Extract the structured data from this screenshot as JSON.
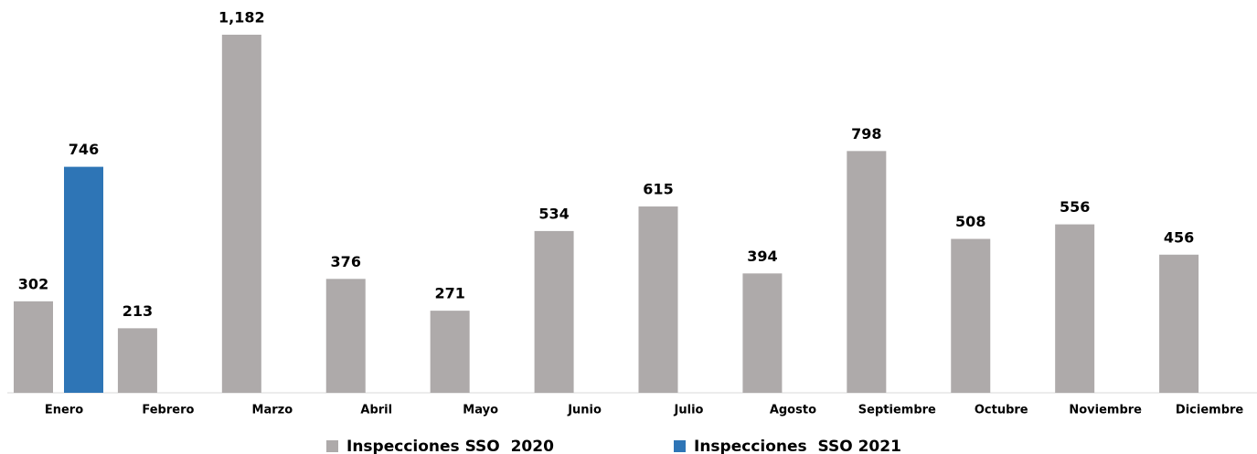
{
  "chart_data": {
    "type": "bar",
    "categories": [
      "Enero",
      "Febrero",
      "Marzo",
      "Abril",
      "Mayo",
      "Junio",
      "Julio",
      "Agosto",
      "Septiembre",
      "Octubre",
      "Noviembre",
      "Diciembre"
    ],
    "series": [
      {
        "name": "Inspecciones SSO  2020",
        "color": "#aeaaaa",
        "values": [
          302,
          213,
          1182,
          376,
          271,
          534,
          615,
          394,
          798,
          508,
          556,
          456
        ],
        "value_labels": [
          "302",
          "213",
          "1,182",
          "376",
          "271",
          "534",
          "615",
          "394",
          "798",
          "508",
          "556",
          "456"
        ]
      },
      {
        "name": "Inspecciones  SSO 2021",
        "color": "#2e75b6",
        "values": [
          746,
          null,
          null,
          null,
          null,
          null,
          null,
          null,
          null,
          null,
          null,
          null
        ]
      }
    ],
    "legend": "bottom"
  }
}
